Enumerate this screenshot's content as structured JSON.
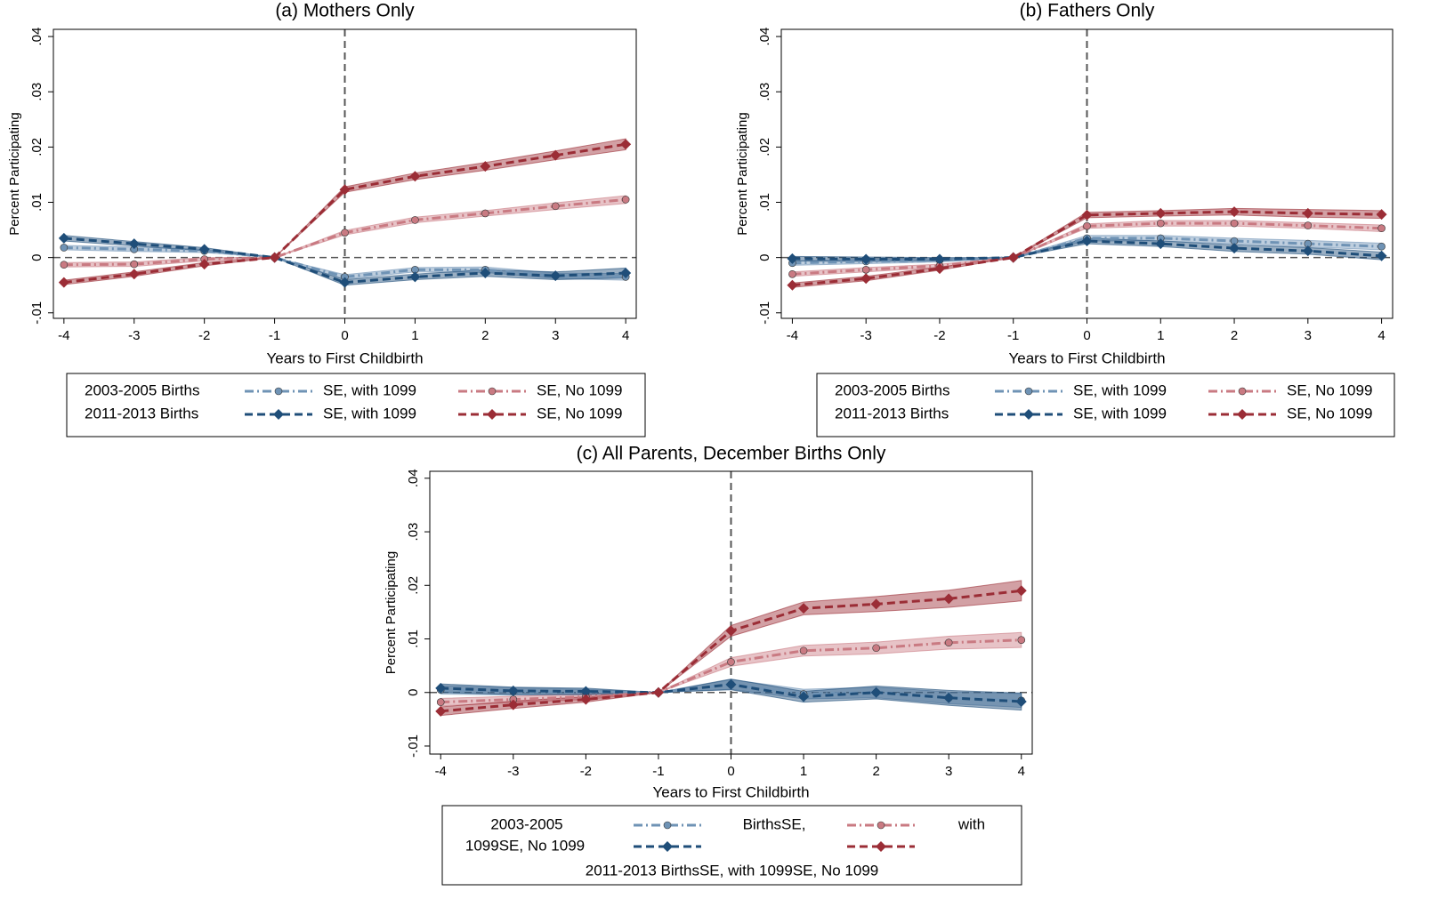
{
  "chart_data": [
    {
      "type": "line",
      "title": "(a) Mothers Only",
      "x_label": "Years to First Childbirth",
      "y_label": "Percent Participating",
      "x": [
        -4,
        -3,
        -2,
        -1,
        0,
        1,
        2,
        3,
        4
      ],
      "xlim": [
        -4.15,
        4.15
      ],
      "xticks": [
        -4,
        -3,
        -2,
        -1,
        0,
        1,
        2,
        3,
        4
      ],
      "ylim": [
        -0.011,
        0.0413
      ],
      "yticks": [
        {
          "value": -0.01,
          "label": "-.01"
        },
        0,
        {
          "value": 0.01,
          "label": ".01"
        },
        {
          "value": 0.02,
          "label": ".02"
        },
        {
          "value": 0.03,
          "label": ".03"
        },
        {
          "value": 0.04,
          "label": ".04"
        }
      ],
      "reference_x": 0,
      "reference_y": 0,
      "legend_groups": [
        "2003-2005 Births",
        "2011-2013 Births"
      ],
      "series": [
        {
          "name": "SE, with 1099",
          "color": "#6f93b5",
          "style": "dashdot",
          "marker": "circle",
          "values": [
            0.0018,
            0.0015,
            0.0012,
            0,
            -0.0035,
            -0.0022,
            -0.0022,
            -0.0033,
            -0.0035
          ],
          "ci": [
            0.0004,
            0.0004,
            0.0003,
            0,
            0.0004,
            0.0004,
            0.0005,
            0.0005,
            0.0006
          ]
        },
        {
          "name": "SE, No 1099",
          "color": "#c97a82",
          "style": "dashdot",
          "marker": "circle",
          "values": [
            -0.0013,
            -0.0012,
            -0.0003,
            0,
            0.0045,
            0.0068,
            0.008,
            0.0093,
            0.0105
          ],
          "ci": [
            0.0004,
            0.0004,
            0.0003,
            0,
            0.0004,
            0.0005,
            0.0005,
            0.0006,
            0.0007
          ]
        },
        {
          "name": "SE, with 1099",
          "color": "#1f4e79",
          "style": "dash",
          "marker": "diamond",
          "values": [
            0.0035,
            0.0025,
            0.0015,
            0,
            -0.0045,
            -0.0035,
            -0.0028,
            -0.0033,
            -0.0028
          ],
          "ci": [
            0.0005,
            0.0004,
            0.0003,
            0,
            0.0005,
            0.0005,
            0.0006,
            0.0007,
            0.0009
          ]
        },
        {
          "name": "SE, No 1099",
          "color": "#9b2d36",
          "style": "dash",
          "marker": "diamond",
          "values": [
            -0.0045,
            -0.003,
            -0.0012,
            0,
            0.0123,
            0.0147,
            0.0165,
            0.0185,
            0.0205
          ],
          "ci": [
            0.0004,
            0.0004,
            0.0003,
            0,
            0.0005,
            0.0006,
            0.0007,
            0.0008,
            0.001
          ]
        }
      ]
    },
    {
      "type": "line",
      "title": "(b) Fathers Only",
      "x_label": "Years to First Childbirth",
      "y_label": "Percent Participating",
      "x": [
        -4,
        -3,
        -2,
        -1,
        0,
        1,
        2,
        3,
        4
      ],
      "xlim": [
        -4.15,
        4.15
      ],
      "xticks": [
        -4,
        -3,
        -2,
        -1,
        0,
        1,
        2,
        3,
        4
      ],
      "ylim": [
        -0.011,
        0.0413
      ],
      "yticks": [
        {
          "value": -0.01,
          "label": "-.01"
        },
        0,
        {
          "value": 0.01,
          "label": ".01"
        },
        {
          "value": 0.02,
          "label": ".02"
        },
        {
          "value": 0.03,
          "label": ".03"
        },
        {
          "value": 0.04,
          "label": ".04"
        }
      ],
      "reference_x": 0,
      "reference_y": 0,
      "legend_groups": [
        "2003-2005 Births",
        "2011-2013 Births"
      ],
      "series": [
        {
          "name": "SE, with 1099",
          "color": "#6f93b5",
          "style": "dashdot",
          "marker": "circle",
          "values": [
            -0.001,
            -0.0007,
            -0.0005,
            0,
            0.0035,
            0.0035,
            0.003,
            0.0025,
            0.002
          ],
          "ci": [
            0.0004,
            0.0004,
            0.0003,
            0,
            0.0005,
            0.0005,
            0.0005,
            0.0006,
            0.0006
          ]
        },
        {
          "name": "SE, No 1099",
          "color": "#c97a82",
          "style": "dashdot",
          "marker": "circle",
          "values": [
            -0.003,
            -0.0022,
            -0.0015,
            0,
            0.0057,
            0.0062,
            0.0062,
            0.0058,
            0.0053
          ],
          "ci": [
            0.0004,
            0.0004,
            0.0003,
            0,
            0.0004,
            0.0005,
            0.0005,
            0.0005,
            0.0006
          ]
        },
        {
          "name": "SE, with 1099",
          "color": "#1f4e79",
          "style": "dash",
          "marker": "diamond",
          "values": [
            -0.0002,
            -0.0003,
            -0.0003,
            0,
            0.003,
            0.0025,
            0.0017,
            0.0012,
            0.0003
          ],
          "ci": [
            0.0004,
            0.0004,
            0.0003,
            0,
            0.0005,
            0.0005,
            0.0006,
            0.0006,
            0.0007
          ]
        },
        {
          "name": "SE, No 1099",
          "color": "#9b2d36",
          "style": "dash",
          "marker": "diamond",
          "values": [
            -0.005,
            -0.0038,
            -0.002,
            0,
            0.0077,
            0.008,
            0.0083,
            0.008,
            0.0078
          ],
          "ci": [
            0.0004,
            0.0004,
            0.0003,
            0,
            0.0005,
            0.0005,
            0.0006,
            0.0007,
            0.0007
          ]
        }
      ]
    },
    {
      "type": "line",
      "title": "(c)  All Parents, December Births Only",
      "x_label": "Years to First Childbirth",
      "y_label": "Percent Participating",
      "x": [
        -4,
        -3,
        -2,
        -1,
        0,
        1,
        2,
        3,
        4
      ],
      "xlim": [
        -4.15,
        4.15
      ],
      "xticks": [
        -4,
        -3,
        -2,
        -1,
        0,
        1,
        2,
        3,
        4
      ],
      "ylim": [
        -0.0115,
        0.0413
      ],
      "yticks": [
        {
          "value": -0.01,
          "label": "-.01"
        },
        0,
        {
          "value": 0.01,
          "label": ".01"
        },
        {
          "value": 0.02,
          "label": ".02"
        },
        {
          "value": 0.03,
          "label": ".03"
        },
        {
          "value": 0.04,
          "label": ".04"
        }
      ],
      "reference_x": 0,
      "reference_y": 0,
      "legend_texts": [
        "2003-2005",
        "BirthsSE,",
        "with",
        "1099SE, No 1099",
        "2011-2013 BirthsSE, with 1099SE, No 1099"
      ],
      "series": [
        {
          "color": "#6f93b5",
          "style": "dashdot",
          "marker": "circle",
          "values": [
            0.0005,
            0.0002,
            0.0001,
            0,
            0.0015,
            -0.0003,
            0,
            -0.001,
            -0.0015
          ],
          "ci": [
            0.0008,
            0.0007,
            0.0005,
            0,
            0.0009,
            0.0009,
            0.001,
            0.0011,
            0.0013
          ]
        },
        {
          "color": "#c97a82",
          "style": "dashdot",
          "marker": "circle",
          "values": [
            -0.0018,
            -0.0013,
            -0.0008,
            0,
            0.0057,
            0.0078,
            0.0083,
            0.0093,
            0.0098
          ],
          "ci": [
            0.0007,
            0.0006,
            0.0005,
            0,
            0.0008,
            0.001,
            0.0011,
            0.0012,
            0.0014
          ]
        },
        {
          "color": "#1f4e79",
          "style": "dash",
          "marker": "diamond",
          "values": [
            0.0008,
            0.0003,
            0.0002,
            0,
            0.0015,
            -0.0008,
            0,
            -0.001,
            -0.0017
          ],
          "ci": [
            0.0008,
            0.0007,
            0.0006,
            0,
            0.001,
            0.001,
            0.0012,
            0.0014,
            0.0016
          ]
        },
        {
          "color": "#9b2d36",
          "style": "dash",
          "marker": "diamond",
          "values": [
            -0.0035,
            -0.0023,
            -0.0013,
            0,
            0.0115,
            0.0157,
            0.0165,
            0.0175,
            0.019
          ],
          "ci": [
            0.0008,
            0.0007,
            0.0005,
            0,
            0.001,
            0.0012,
            0.0014,
            0.0016,
            0.0019
          ]
        }
      ]
    }
  ]
}
